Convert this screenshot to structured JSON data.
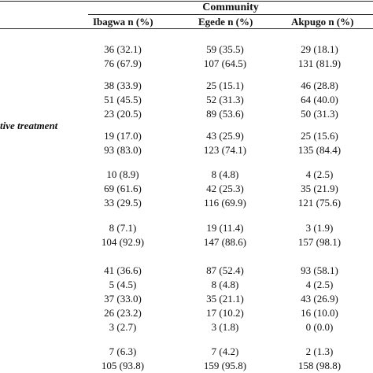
{
  "table": {
    "group_header": "Community",
    "columns": [
      "Ibagwa n (%)",
      "Egede n (%)",
      "Akpugo n (%)"
    ],
    "section_label": "tive treatment",
    "rows": [
      [
        "36 (32.1)",
        "59 (35.5)",
        "29 (18.1)"
      ],
      [
        "76 (67.9)",
        "107 (64.5)",
        "131 (81.9)"
      ],
      [
        "38 (33.9)",
        "25 (15.1)",
        "46 (28.8)"
      ],
      [
        "51 (45.5)",
        "52 (31.3)",
        "64 (40.0)"
      ],
      [
        "23 (20.5)",
        "89 (53.6)",
        "50 (31.3)"
      ],
      [
        "19 (17.0)",
        "43 (25.9)",
        "25 (15.6)"
      ],
      [
        "93 (83.0)",
        "123 (74.1)",
        "135 (84.4)"
      ],
      [
        "10 (8.9)",
        "8 (4.8)",
        "4 (2.5)"
      ],
      [
        "69 (61.6)",
        "42 (25.3)",
        "35 (21.9)"
      ],
      [
        "33 (29.5)",
        "116 (69.9)",
        "121 (75.6)"
      ],
      [
        "8 (7.1)",
        "19 (11.4)",
        "3 (1.9)"
      ],
      [
        "104 (92.9)",
        "147 (88.6)",
        "157 (98.1)"
      ],
      [
        "41 (36.6)",
        "87 (52.4)",
        "93 (58.1)"
      ],
      [
        "5 (4.5)",
        "8 (4.8)",
        "4 (2.5)"
      ],
      [
        "37 (33.0)",
        "35 (21.1)",
        "43 (26.9)"
      ],
      [
        "26 (23.2)",
        "17 (10.2)",
        "16 (10.0)"
      ],
      [
        "3 (2.7)",
        "3 (1.8)",
        "0 (0.0)"
      ],
      [
        "7 (6.3)",
        "7 (4.2)",
        "2 (1.3)"
      ],
      [
        "105 (93.8)",
        "159 (95.8)",
        "158 (98.8)"
      ]
    ]
  }
}
